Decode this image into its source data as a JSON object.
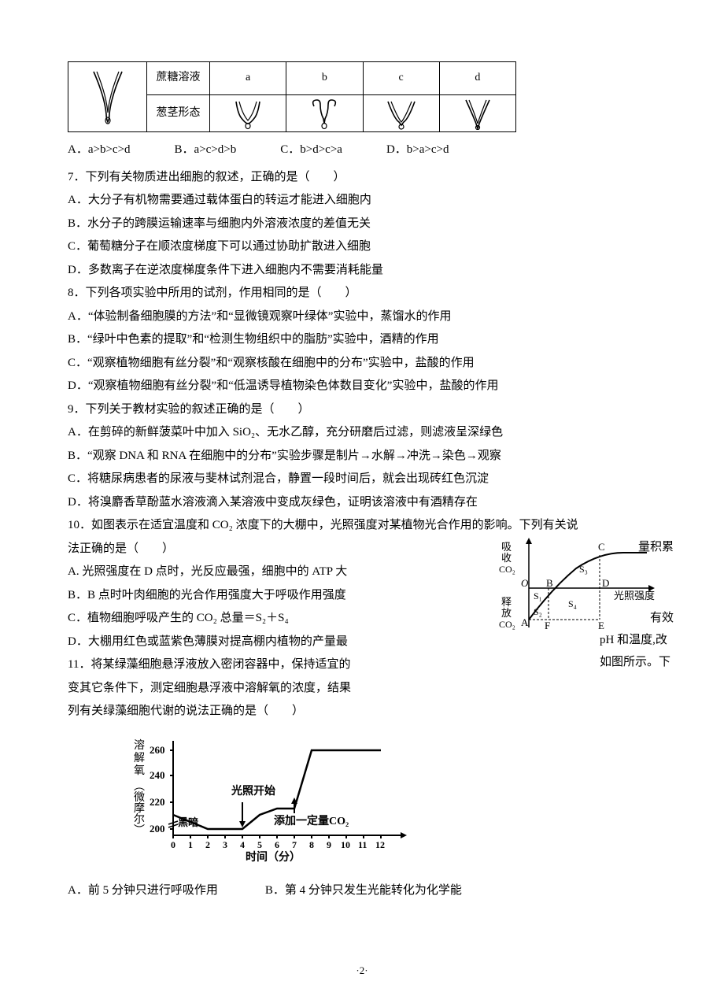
{
  "table": {
    "row1_label": "蔗糖溶液",
    "row1_cols": [
      "a",
      "b",
      "c",
      "d"
    ],
    "row2_label": "葱茎形态"
  },
  "q6_opts": [
    "A．a>b>c>d",
    "B．a>c>d>b",
    "C．b>d>c>a",
    "D．b>a>c>d"
  ],
  "q7": {
    "stem": "7．下列有关物质进出细胞的叙述，正确的是（　　）",
    "A": "A．大分子有机物需要通过载体蛋白的转运才能进入细胞内",
    "B": "B．水分子的跨膜运输速率与细胞内外溶液浓度的差值无关",
    "C": "C．葡萄糖分子在顺浓度梯度下可以通过协助扩散进入细胞",
    "D": "D．多数离子在逆浓度梯度条件下进入细胞内不需要消耗能量"
  },
  "q8": {
    "stem": "8．下列各项实验中所用的试剂，作用相同的是（　　）",
    "A": "A．“体验制备细胞膜的方法”和“显微镜观察叶绿体”实验中，蒸馏水的作用",
    "B": "B．“绿叶中色素的提取”和“检测生物组织中的脂肪”实验中，酒精的作用",
    "C": "C．“观察植物细胞有丝分裂”和“观察核酸在细胞中的分布”实验中，盐酸的作用",
    "D": "D．“观察植物细胞有丝分裂”和“低温诱导植物染色体数目变化”实验中，盐酸的作用"
  },
  "q9": {
    "stem": "9．下列关于教材实验的叙述正确的是（　　）",
    "A": "A．在剪碎的新鲜菠菜叶中加入 SiO₂、无水乙醇，充分研磨后过滤，则滤液呈深绿色",
    "B": "B．“观察 DNA 和 RNA 在细胞中的分布”实验步骤是制片→水解→冲洗→染色→观察",
    "C": "C．将糖尿病患者的尿液与斐林试剂混合，静置一段时间后，就会出现砖红色沉淀",
    "D": "D．将溴麝香草酚蓝水溶液滴入某溶液中变成灰绿色，证明该溶液中有酒精存在"
  },
  "q10": {
    "stem1": "10．如图表示在适宜温度和 CO₂ 浓度下的大棚中，光照强度对某植物光合作用的影响。下列有关说",
    "stem2": "法正确的是（　　）",
    "A": "A. 光照强度在 D 点时，光反应最强，细胞中的 ATP 大",
    "A_right": "量积累",
    "B": "B．B 点时叶肉细胞的光合作用强度大于呼吸作用强度",
    "C": "C．植物细胞呼吸产生的 CO₂ 总量＝S₂＋S₄",
    "D": "D．大棚用红色或蓝紫色薄膜对提高棚内植物的产量最",
    "D_right": "有效",
    "fig": {
      "y_top": "吸收CO₂",
      "y_bot": "释放CO₂",
      "x_label": "光照强度",
      "labels": [
        "A",
        "B",
        "C",
        "D",
        "E",
        "F",
        "O"
      ],
      "regions": [
        "S₁",
        "S₂",
        "S₃",
        "S₄"
      ],
      "curve_color": "#000000",
      "line_width": 1.5,
      "background": "#ffffff"
    }
  },
  "q11": {
    "stem1": "11．将某绿藻细胞悬浮液放入密闭容器中，保持适宜的",
    "stem1_right": "pH 和温度,改",
    "stem2": "变其它条件下，测定细胞悬浮液中溶解氧的浓度，结果",
    "stem2_right": "如图所示。下",
    "stem3": "列有关绿藻细胞代谢的说法正确的是（　　）",
    "A": "A．前 5 分钟只进行呼吸作用",
    "B": "B．第 4 分钟只发生光能转化为化学能",
    "fig": {
      "y_label": "溶解氧（微摩尔）",
      "x_label": "时间（分）",
      "y_ticks": [
        200,
        220,
        240,
        260
      ],
      "x_ticks": [
        0,
        1,
        2,
        3,
        4,
        5,
        6,
        7,
        8,
        9,
        10,
        11,
        12
      ],
      "annotations": [
        "黑暗",
        "光照开始",
        "添加一定量CO₂"
      ],
      "data_points": [
        [
          0,
          210
        ],
        [
          2,
          200
        ],
        [
          4,
          200
        ],
        [
          5,
          210
        ],
        [
          6,
          215
        ],
        [
          7,
          215
        ],
        [
          8,
          260
        ],
        [
          9,
          260
        ],
        [
          12,
          260
        ]
      ],
      "line_color": "#000000",
      "line_width": 2,
      "background": "#ffffff"
    }
  },
  "page_number": "·2·"
}
